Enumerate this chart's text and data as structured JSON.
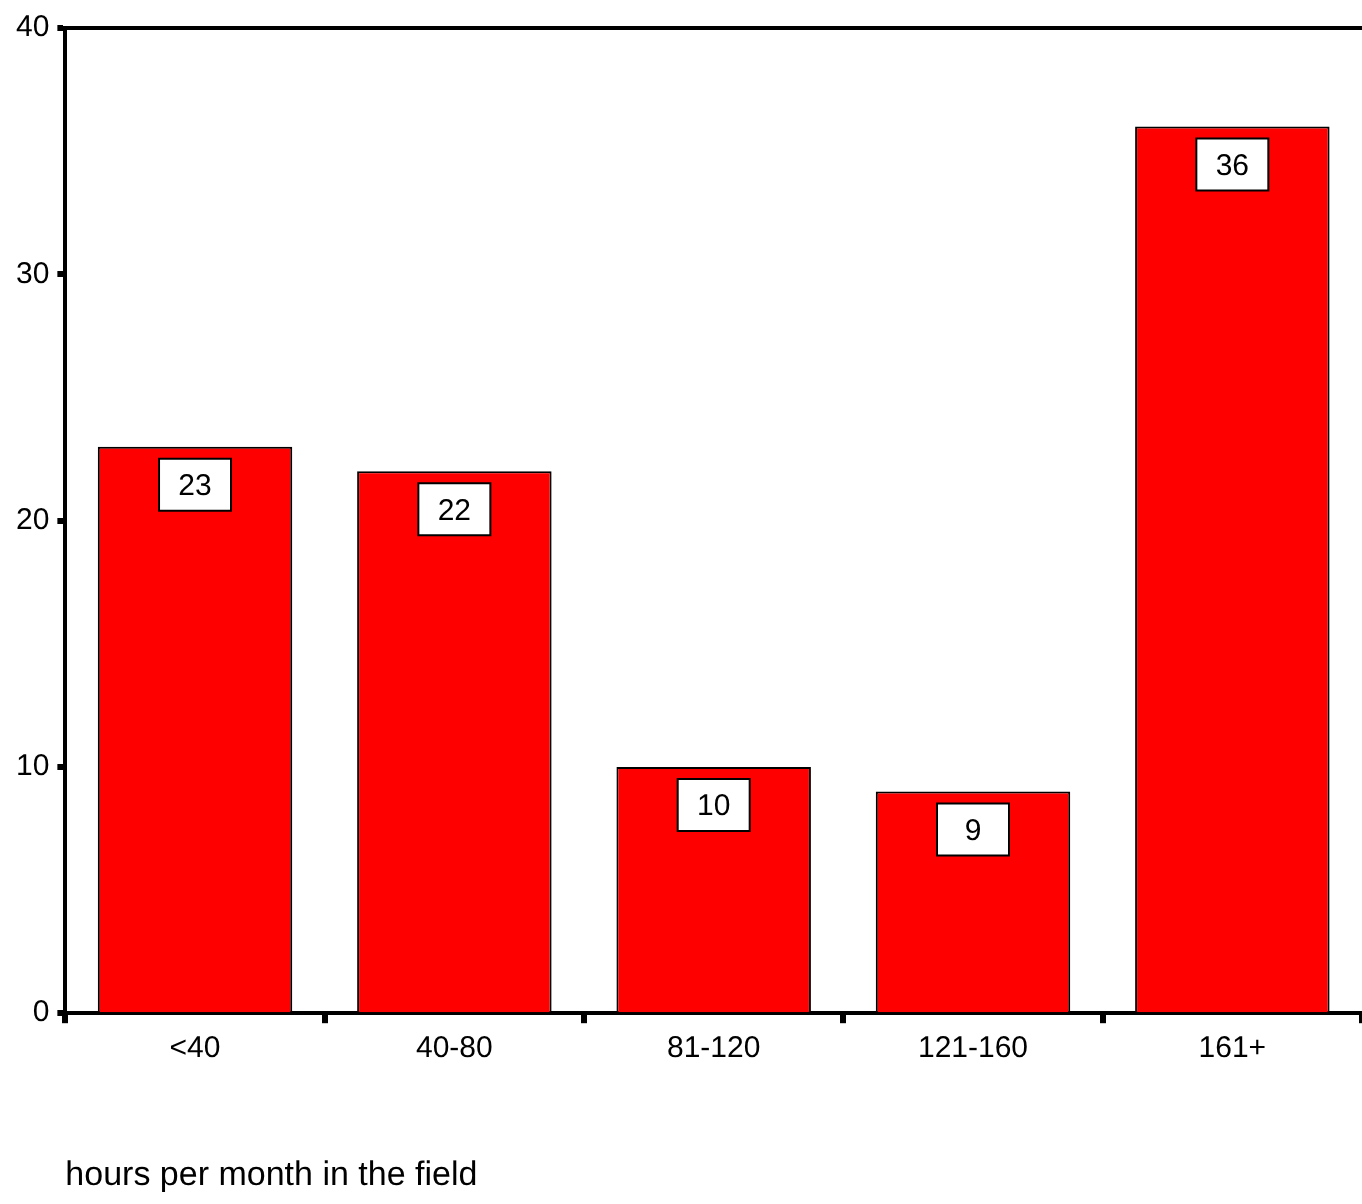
{
  "chart_data": {
    "type": "bar",
    "xlabel": "hours per month in the field",
    "categories": [
      "<40",
      "40-80",
      "81-120",
      "121-160",
      "161+"
    ],
    "values": [
      23,
      22,
      10,
      9,
      36
    ],
    "color": "#ff0000",
    "ylim": [
      0,
      40
    ],
    "yticks": [
      0,
      10,
      20,
      30,
      40
    ],
    "data_labels": true
  }
}
